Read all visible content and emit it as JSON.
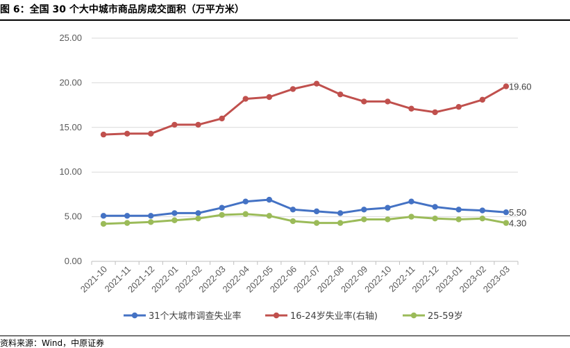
{
  "figure": {
    "title": "图 6：全国 30 个大中城市商品房成交面积（万平方米）",
    "source": "资料来源：Wind，中原证券"
  },
  "chart_data": {
    "type": "line",
    "categories": [
      "2021-10",
      "2021-11",
      "2021-12",
      "2022-01",
      "2022-02",
      "2022-03",
      "2022-04",
      "2022-05",
      "2022-06",
      "2022-07",
      "2022-08",
      "2022-09",
      "2022-10",
      "2022-11",
      "2022-12",
      "2023-01",
      "2023-02",
      "2023-03"
    ],
    "y_ticks": [
      "0.00",
      "5.00",
      "10.00",
      "15.00",
      "20.00",
      "25.00"
    ],
    "ylim": [
      0,
      25
    ],
    "grid": true,
    "legend_position": "bottom",
    "series": [
      {
        "name": "31个大城市调查失业率",
        "color": "#4472C4",
        "values": [
          5.1,
          5.1,
          5.1,
          5.4,
          5.4,
          6.0,
          6.7,
          6.9,
          5.8,
          5.6,
          5.4,
          5.8,
          6.0,
          6.7,
          6.1,
          5.8,
          5.7,
          5.5
        ],
        "end_label": "5.50"
      },
      {
        "name": "16-24岁失业率(右轴)",
        "color": "#C0504D",
        "values": [
          14.2,
          14.3,
          14.3,
          15.3,
          15.3,
          16.0,
          18.2,
          18.4,
          19.3,
          19.9,
          18.7,
          17.9,
          17.9,
          17.1,
          16.7,
          17.3,
          18.1,
          19.6
        ],
        "end_label": "19.60"
      },
      {
        "name": "25-59岁",
        "color": "#9BBB59",
        "values": [
          4.2,
          4.3,
          4.4,
          4.6,
          4.8,
          5.2,
          5.3,
          5.1,
          4.5,
          4.3,
          4.3,
          4.7,
          4.7,
          5.0,
          4.8,
          4.7,
          4.8,
          4.3
        ],
        "end_label": "4.30"
      }
    ]
  }
}
